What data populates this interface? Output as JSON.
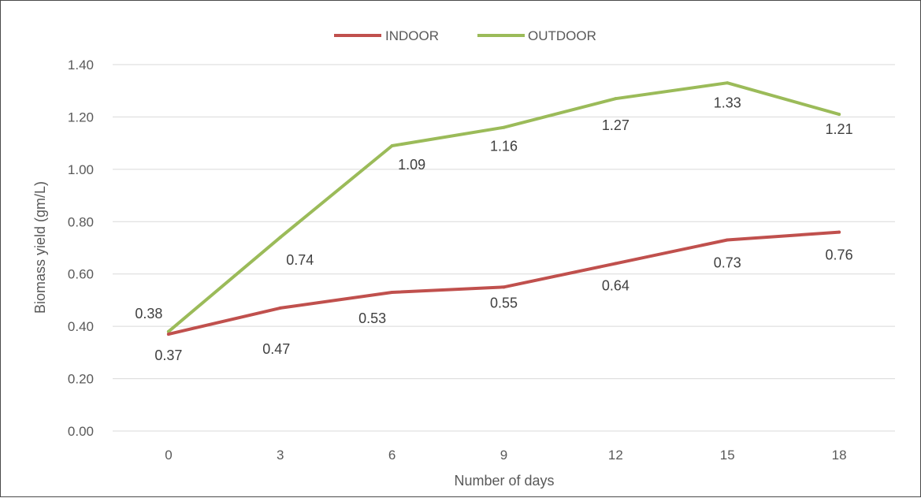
{
  "chart_data": {
    "type": "line",
    "title": "",
    "xlabel": "Number of days",
    "ylabel": "Biomass yield (gm/L)",
    "categories": [
      "0",
      "3",
      "6",
      "9",
      "12",
      "15",
      "18"
    ],
    "ylim": [
      0,
      1.4
    ],
    "y_ticks": [
      "0.00",
      "0.20",
      "0.40",
      "0.60",
      "0.80",
      "1.00",
      "1.20",
      "1.40"
    ],
    "grid": true,
    "legend_position": "top-center",
    "series": [
      {
        "name": "INDOOR",
        "color": "#c0504d",
        "values": [
          0.37,
          0.47,
          0.53,
          0.55,
          0.64,
          0.73,
          0.76
        ],
        "labels": [
          "0.37",
          "0.47",
          "0.53",
          "0.55",
          "0.64",
          "0.73",
          "0.76"
        ]
      },
      {
        "name": "OUTDOOR",
        "color": "#9bbb59",
        "values": [
          0.38,
          0.74,
          1.09,
          1.16,
          1.27,
          1.33,
          1.21
        ],
        "labels": [
          "0.38",
          "0.74",
          "1.09",
          "1.16",
          "1.27",
          "1.33",
          "1.21"
        ]
      }
    ]
  }
}
